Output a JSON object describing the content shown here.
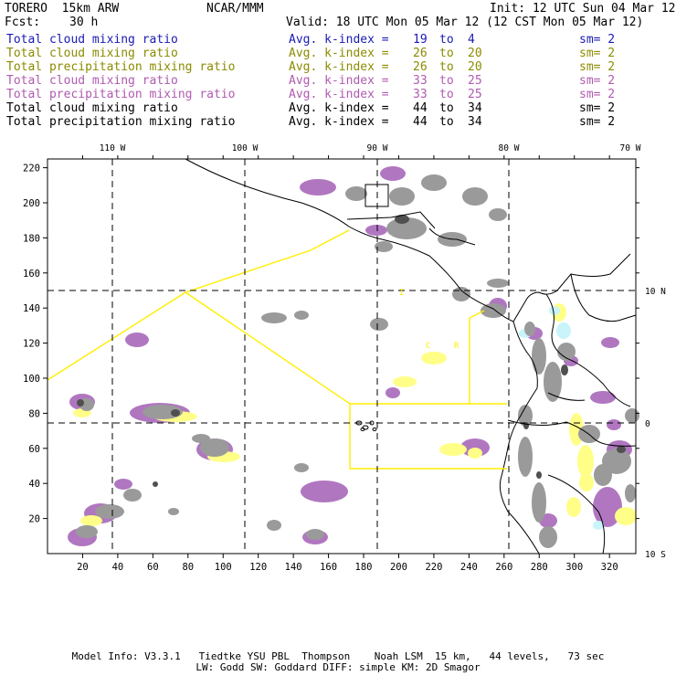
{
  "header": {
    "model": "TORERO  15km ARW",
    "center": "NCAR/MMM",
    "init": "Init: 12 UTC Sun 04 Mar 12",
    "fcst_label": "Fcst:",
    "fcst_value": "30 h",
    "valid": "Valid: 18 UTC Mon 05 Mar 12 (12 CST Mon 05 Mar 12)"
  },
  "legend": [
    {
      "field": "Total cloud mixing ratio",
      "kindex": "Avg. k-index =",
      "k1": "19",
      "to": "to",
      "k2": "4",
      "sm": "sm= 2",
      "color": "#1a1ab4"
    },
    {
      "field": "Total cloud mixing ratio",
      "kindex": "Avg. k-index =",
      "k1": "26",
      "to": "to",
      "k2": "20",
      "sm": "sm= 2",
      "color": "#8b8b00"
    },
    {
      "field": "Total precipitation mixing ratio",
      "kindex": "Avg. k-index =",
      "k1": "26",
      "to": "to",
      "k2": "20",
      "sm": "sm= 2",
      "color": "#8b8b00"
    },
    {
      "field": "Total cloud mixing ratio",
      "kindex": "Avg. k-index =",
      "k1": "33",
      "to": "to",
      "k2": "25",
      "sm": "sm= 2",
      "color": "#b05ab0"
    },
    {
      "field": "Total precipitation mixing ratio",
      "kindex": "Avg. k-index =",
      "k1": "33",
      "to": "to",
      "k2": "25",
      "sm": "sm= 2",
      "color": "#b05ab0"
    },
    {
      "field": "Total cloud mixing ratio",
      "kindex": "Avg. k-index =",
      "k1": "44",
      "to": "to",
      "k2": "34",
      "sm": "sm= 2",
      "color": "#000000"
    },
    {
      "field": "Total precipitation mixing ratio",
      "kindex": "Avg. k-index =",
      "k1": "44",
      "to": "to",
      "k2": "34",
      "sm": "sm= 2",
      "color": "#000000"
    }
  ],
  "map": {
    "lon_labels": [
      "110 W",
      "100 W",
      "90 W",
      "80 W",
      "70 W"
    ],
    "lat_labels": [
      "10 N",
      "0",
      "10 S"
    ],
    "x_ticks": [
      "20",
      "40",
      "60",
      "80",
      "100",
      "120",
      "140",
      "160",
      "180",
      "200",
      "220",
      "240",
      "260",
      "280",
      "300",
      "320"
    ],
    "y_ticks": [
      "20",
      "40",
      "60",
      "80",
      "100",
      "120",
      "140",
      "160",
      "180",
      "200",
      "220"
    ],
    "x_range": [
      0,
      335
    ],
    "y_range": [
      0,
      225
    ],
    "region_labels": [
      "I",
      "C",
      "R"
    ],
    "colors": {
      "gray": "#9a9a9a",
      "dark": "#505050",
      "purple": "#b077c0",
      "yellow": "#ffff88",
      "cyan": "#c8f4fa",
      "yellow_line": "#ffee00"
    }
  },
  "footer": {
    "line1": "Model Info: V3.3.1   Tiedtke YSU PBL  Thompson    Noah LSM  15 km,   44 levels,   73 sec",
    "line2": "LW: Godd SW: Goddard DIFF: simple KM: 2D Smagor"
  }
}
